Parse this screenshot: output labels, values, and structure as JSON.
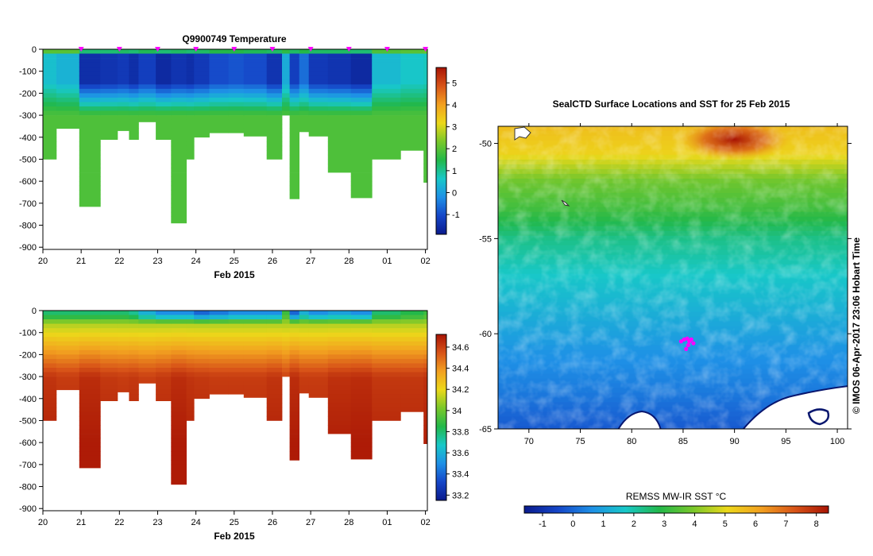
{
  "chart_data": [
    {
      "type": "heatmap",
      "panel": "temperature-section",
      "title": "Q9900749  Temperature",
      "xlabel": "Feb 2015",
      "x_tick_labels": [
        "20",
        "21",
        "22",
        "23",
        "24",
        "25",
        "26",
        "27",
        "28",
        "01",
        "02"
      ],
      "x_ticks_days": [
        20,
        21,
        22,
        23,
        24,
        25,
        26,
        27,
        28,
        29,
        30
      ],
      "xlim": [
        20,
        30.05
      ],
      "ylim": [
        -910,
        0
      ],
      "y_ticks": [
        0,
        -100,
        -200,
        -300,
        -400,
        -500,
        -600,
        -700,
        -800,
        -900
      ],
      "colorbar": {
        "ticks": [
          5,
          4,
          3,
          2,
          1,
          0,
          -1
        ],
        "range": [
          -1.9,
          5.7
        ],
        "palette": [
          "#0a1a8c",
          "#1546c8",
          "#1e90e6",
          "#18c8c8",
          "#22b84a",
          "#7ac82a",
          "#ecd81a",
          "#f2a020",
          "#d85418",
          "#a81404"
        ]
      },
      "surface_marker_days": [
        21,
        22,
        23,
        24,
        25,
        26,
        27,
        28,
        29,
        30
      ],
      "profiles": [
        {
          "day": 20.0,
          "depth": 500,
          "surface": 2.0,
          "coldest": 0.5,
          "deep": 1.9
        },
        {
          "day": 20.35,
          "depth": 360,
          "surface": 2.0,
          "coldest": 0.3,
          "deep": 1.9
        },
        {
          "day": 20.95,
          "depth": 715,
          "surface": 1.2,
          "coldest": -1.5,
          "deep": 1.9
        },
        {
          "day": 21.5,
          "depth": 410,
          "surface": 1.2,
          "coldest": -1.4,
          "deep": 1.9
        },
        {
          "day": 21.95,
          "depth": 370,
          "surface": 1.3,
          "coldest": -1.3,
          "deep": 1.9
        },
        {
          "day": 22.25,
          "depth": 410,
          "surface": 1.2,
          "coldest": -1.5,
          "deep": 1.9
        },
        {
          "day": 22.5,
          "depth": 330,
          "surface": 1.4,
          "coldest": -1.2,
          "deep": 1.9
        },
        {
          "day": 22.95,
          "depth": 410,
          "surface": 1.2,
          "coldest": -1.6,
          "deep": 1.9
        },
        {
          "day": 23.35,
          "depth": 790,
          "surface": 1.3,
          "coldest": -1.4,
          "deep": 1.9
        },
        {
          "day": 23.75,
          "depth": 500,
          "surface": 1.2,
          "coldest": -1.5,
          "deep": 1.9
        },
        {
          "day": 23.95,
          "depth": 400,
          "surface": 1.3,
          "coldest": -1.3,
          "deep": 1.9
        },
        {
          "day": 24.35,
          "depth": 380,
          "surface": 1.5,
          "coldest": -1.0,
          "deep": 1.9
        },
        {
          "day": 24.85,
          "depth": 380,
          "surface": 1.5,
          "coldest": -0.9,
          "deep": 1.9
        },
        {
          "day": 25.25,
          "depth": 395,
          "surface": 1.4,
          "coldest": -1.0,
          "deep": 1.9
        },
        {
          "day": 25.85,
          "depth": 500,
          "surface": 1.3,
          "coldest": -1.4,
          "deep": 1.9
        },
        {
          "day": 26.25,
          "depth": 300,
          "surface": 1.6,
          "coldest": 0.2,
          "deep": 1.9
        },
        {
          "day": 26.45,
          "depth": 680,
          "surface": 1.3,
          "coldest": -1.2,
          "deep": 1.9
        },
        {
          "day": 26.7,
          "depth": 375,
          "surface": 1.5,
          "coldest": -0.6,
          "deep": 1.9
        },
        {
          "day": 26.95,
          "depth": 395,
          "surface": 1.3,
          "coldest": -1.3,
          "deep": 1.9
        },
        {
          "day": 27.45,
          "depth": 560,
          "surface": 1.3,
          "coldest": -1.4,
          "deep": 1.9
        },
        {
          "day": 28.05,
          "depth": 675,
          "surface": 1.2,
          "coldest": -1.6,
          "deep": 1.9
        },
        {
          "day": 28.6,
          "depth": 500,
          "surface": 1.9,
          "coldest": 0.4,
          "deep": 1.9
        },
        {
          "day": 29.35,
          "depth": 460,
          "surface": 2.0,
          "coldest": 0.6,
          "deep": 1.9
        },
        {
          "day": 29.95,
          "depth": 605,
          "surface": 2.1,
          "coldest": 0.7,
          "deep": 1.9
        }
      ]
    },
    {
      "type": "heatmap",
      "panel": "salinity-section",
      "title": "",
      "xlabel": "Feb 2015",
      "x_tick_labels": [
        "20",
        "21",
        "22",
        "23",
        "24",
        "25",
        "26",
        "27",
        "28",
        "01",
        "02"
      ],
      "x_ticks_days": [
        20,
        21,
        22,
        23,
        24,
        25,
        26,
        27,
        28,
        29,
        30
      ],
      "xlim": [
        20,
        30.05
      ],
      "ylim": [
        -910,
        0
      ],
      "y_ticks": [
        0,
        -100,
        -200,
        -300,
        -400,
        -500,
        -600,
        -700,
        -800,
        -900
      ],
      "colorbar": {
        "ticks": [
          "34.6",
          "34.4",
          "34.2",
          "34",
          "33.8",
          "33.6",
          "33.4",
          "33.2"
        ],
        "range": [
          33.15,
          34.72
        ],
        "palette": [
          "#0a1a8c",
          "#1546c8",
          "#1e90e6",
          "#18c8c8",
          "#22b84a",
          "#7ac82a",
          "#ecd81a",
          "#f2a020",
          "#d85418",
          "#a81404"
        ]
      },
      "profiles": [
        {
          "day": 20.0,
          "depth": 500,
          "surface": 33.8,
          "deep": 34.68
        },
        {
          "day": 20.35,
          "depth": 360,
          "surface": 33.8,
          "deep": 34.66
        },
        {
          "day": 20.95,
          "depth": 715,
          "surface": 33.8,
          "deep": 34.7
        },
        {
          "day": 21.5,
          "depth": 410,
          "surface": 33.8,
          "deep": 34.67
        },
        {
          "day": 21.95,
          "depth": 370,
          "surface": 33.8,
          "deep": 34.66
        },
        {
          "day": 22.25,
          "depth": 410,
          "surface": 33.75,
          "deep": 34.67
        },
        {
          "day": 22.5,
          "depth": 330,
          "surface": 33.6,
          "deep": 34.65
        },
        {
          "day": 22.95,
          "depth": 410,
          "surface": 33.5,
          "deep": 34.67
        },
        {
          "day": 23.35,
          "depth": 790,
          "surface": 33.5,
          "deep": 34.7
        },
        {
          "day": 23.75,
          "depth": 500,
          "surface": 33.5,
          "deep": 34.68
        },
        {
          "day": 23.95,
          "depth": 400,
          "surface": 33.4,
          "deep": 34.67
        },
        {
          "day": 24.35,
          "depth": 380,
          "surface": 33.45,
          "deep": 34.66
        },
        {
          "day": 24.85,
          "depth": 380,
          "surface": 33.5,
          "deep": 34.66
        },
        {
          "day": 25.25,
          "depth": 395,
          "surface": 33.5,
          "deep": 34.66
        },
        {
          "day": 25.85,
          "depth": 500,
          "surface": 33.5,
          "deep": 34.68
        },
        {
          "day": 26.25,
          "depth": 300,
          "surface": 33.9,
          "deep": 34.64
        },
        {
          "day": 26.45,
          "depth": 680,
          "surface": 33.4,
          "deep": 34.7
        },
        {
          "day": 26.7,
          "depth": 375,
          "surface": 33.6,
          "deep": 34.66
        },
        {
          "day": 26.95,
          "depth": 395,
          "surface": 33.5,
          "deep": 34.66
        },
        {
          "day": 27.45,
          "depth": 560,
          "surface": 33.55,
          "deep": 34.69
        },
        {
          "day": 28.05,
          "depth": 675,
          "surface": 33.5,
          "deep": 34.7
        },
        {
          "day": 28.6,
          "depth": 500,
          "surface": 33.8,
          "deep": 34.67
        },
        {
          "day": 29.35,
          "depth": 460,
          "surface": 33.85,
          "deep": 34.67
        },
        {
          "day": 29.95,
          "depth": 605,
          "surface": 33.9,
          "deep": 34.69
        }
      ]
    },
    {
      "type": "heatmap",
      "panel": "sst-map",
      "title": "SealCTD Surface Locations and SST for 25 Feb 2015",
      "x_tick_labels": [
        "70",
        "75",
        "80",
        "85",
        "90",
        "95",
        "100"
      ],
      "x_ticks": [
        70,
        75,
        80,
        85,
        90,
        95,
        100
      ],
      "y_tick_labels": [
        "-50",
        "-55",
        "-60",
        "-65"
      ],
      "y_ticks": [
        -50,
        -55,
        -60,
        -65
      ],
      "xlim": [
        67,
        101
      ],
      "ylim": [
        -65,
        -49.1
      ],
      "colorbar_label": "REMSS MW-IR SST °C",
      "colorbar_ticks": [
        "-1",
        "0",
        "1",
        "2",
        "3",
        "4",
        "5",
        "6",
        "7",
        "8"
      ],
      "colorbar_range": [
        -1.6,
        8.4
      ],
      "sst_by_latitude": [
        {
          "lat": -49.1,
          "sst": 5.6
        },
        {
          "lat": -50.5,
          "sst": 5.2
        },
        {
          "lat": -52.0,
          "sst": 3.8
        },
        {
          "lat": -53.5,
          "sst": 3.2
        },
        {
          "lat": -55.0,
          "sst": 2.3
        },
        {
          "lat": -57.0,
          "sst": 1.7
        },
        {
          "lat": -59.0,
          "sst": 1.2
        },
        {
          "lat": -61.0,
          "sst": 0.7
        },
        {
          "lat": -63.0,
          "sst": 0.3
        },
        {
          "lat": -65.0,
          "sst": -0.2
        }
      ],
      "warm_core": {
        "lon": 90,
        "lat": -49.8,
        "sst": 7.5
      },
      "seal_track": {
        "lon": [
          84.8,
          85.1,
          85.4,
          85.6,
          85.8,
          86.0,
          85.5,
          85.3
        ],
        "lat": [
          -60.4,
          -60.3,
          -60.25,
          -60.4,
          -60.3,
          -60.5,
          -60.6,
          -60.8
        ],
        "color": "#ff00ff"
      },
      "credit": "© IMOS 06-Apr-2017 23:06 Hobart Time"
    }
  ]
}
